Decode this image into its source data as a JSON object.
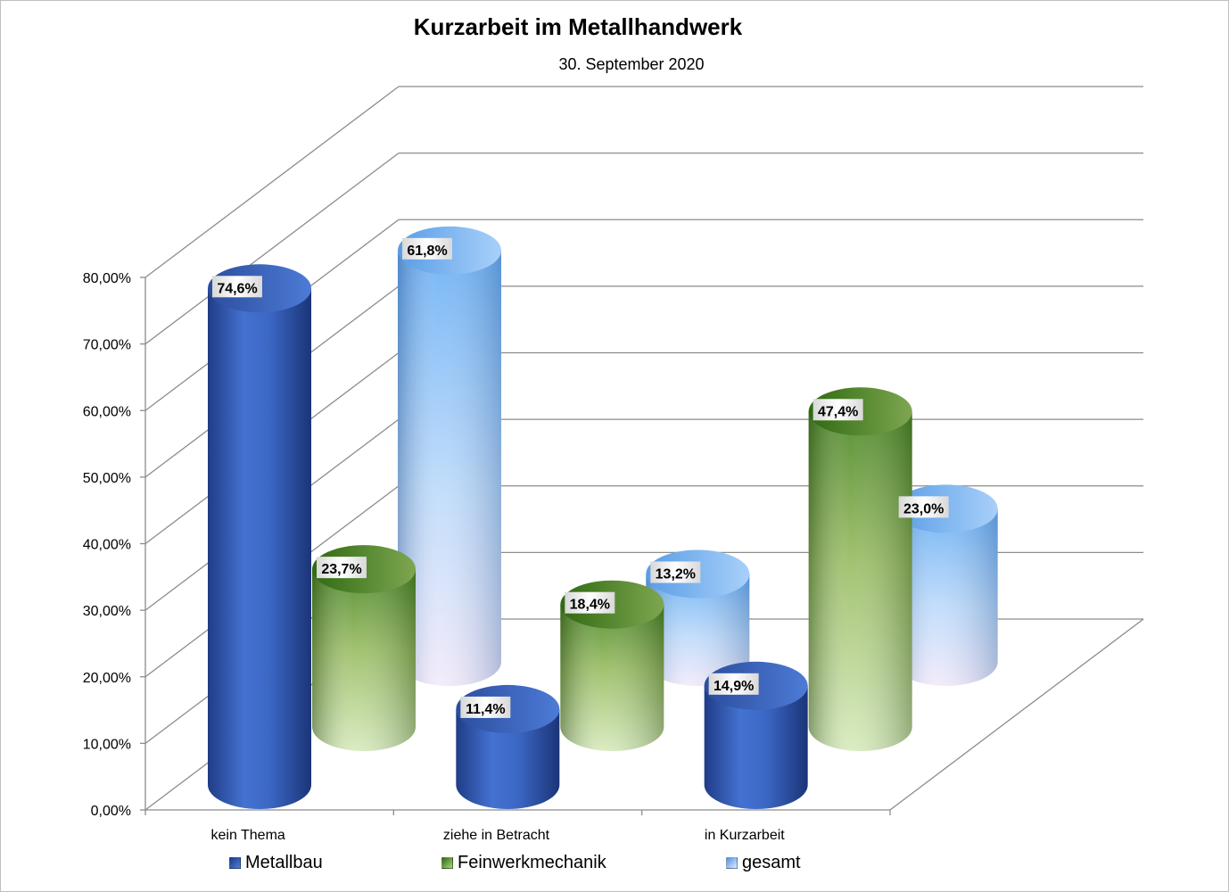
{
  "chart_data": {
    "type": "bar",
    "title": "Kurzarbeit im Metallhandwerk",
    "subtitle": "30. September 2020",
    "xlabel": "",
    "ylabel": "",
    "ylim": [
      0,
      80
    ],
    "ytick_labels": [
      "0,00%",
      "10,00%",
      "20,00%",
      "30,00%",
      "40,00%",
      "50,00%",
      "60,00%",
      "70,00%",
      "80,00%"
    ],
    "categories": [
      "kein Thema",
      "ziehe in Betracht",
      "in Kurzarbeit"
    ],
    "series": [
      {
        "name": "Metallbau",
        "values": [
          74.6,
          11.4,
          14.9
        ],
        "labels": [
          "74,6%",
          "11,4%",
          "14,9%"
        ],
        "color": "#3a62bd"
      },
      {
        "name": "Feinwerkmechanik",
        "values": [
          23.7,
          18.4,
          47.4
        ],
        "labels": [
          "23,7%",
          "18,4%",
          "47,4%"
        ],
        "color": "#6f9a3c"
      },
      {
        "name": "gesamt",
        "values": [
          61.8,
          13.2,
          23.0
        ],
        "labels": [
          "61,8%",
          "13,2%",
          "23,0%"
        ],
        "color": "#7ab7f2"
      }
    ],
    "grid": true,
    "legend_position": "bottom",
    "style": "3d-cylinder"
  }
}
